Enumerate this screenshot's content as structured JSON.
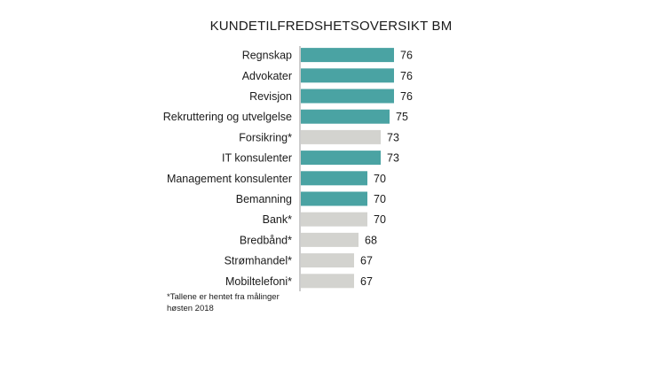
{
  "chart_data": {
    "type": "bar",
    "orientation": "horizontal",
    "title": "KUNDETILFREDSHETSOVERSIKT BM",
    "categories": [
      "Regnskap",
      "Advokater",
      "Revisjon",
      "Rekruttering og utvelgelse",
      "Forsikring*",
      "IT konsulenter",
      "Management konsulenter",
      "Bemanning",
      "Bank*",
      "Bredbånd*",
      "Strømhandel*",
      "Mobiltelefoni*"
    ],
    "values": [
      76,
      76,
      76,
      75,
      73,
      73,
      70,
      70,
      70,
      68,
      67,
      67
    ],
    "highlight": [
      true,
      true,
      true,
      true,
      false,
      true,
      true,
      true,
      false,
      false,
      false,
      false
    ],
    "colors": {
      "primary": "#4aa3a3",
      "secondary": "#d3d3cf"
    },
    "xlim": [
      55,
      80
    ],
    "grid": false,
    "legend": "none"
  },
  "footnote": "*Tallene er hentet fra målinger høsten 2018"
}
